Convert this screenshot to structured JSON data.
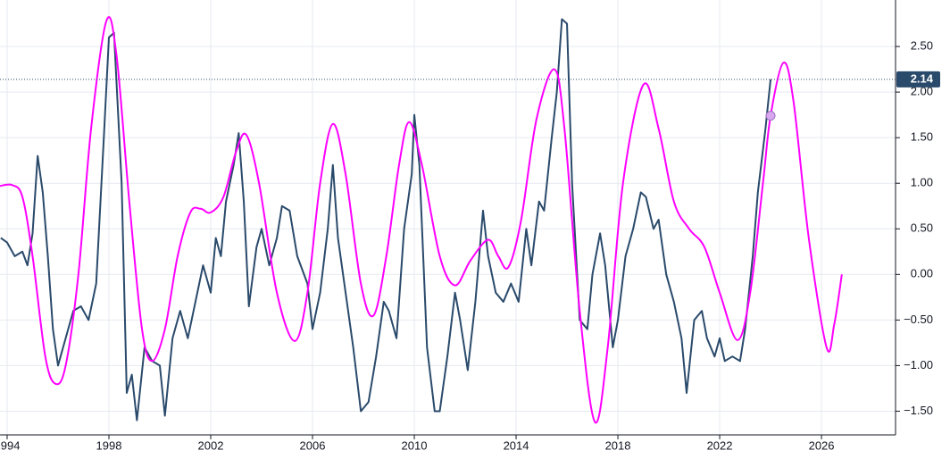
{
  "chart_data": {
    "type": "line",
    "xlim": [
      1993.72,
      2028.91
    ],
    "ylim": [
      -1.76,
      3.01
    ],
    "xticks": [
      1994,
      1998,
      2002,
      2006,
      2010,
      2014,
      2018,
      2022,
      2026
    ],
    "yticks": [
      {
        "value": 2.5,
        "label": "2.50"
      },
      {
        "value": 2.0,
        "label": "2.00"
      },
      {
        "value": 1.5,
        "label": "1.50"
      },
      {
        "value": 1.0,
        "label": "1.00"
      },
      {
        "value": 0.5,
        "label": "0.50"
      },
      {
        "value": 0.0,
        "label": "0.00"
      },
      {
        "value": -0.5,
        "label": "−0.50"
      },
      {
        "value": -1.0,
        "label": "−1.00"
      },
      {
        "value": -1.5,
        "label": "−1.50"
      }
    ],
    "grid": true,
    "series": [
      {
        "color": "#2a4a6b",
        "x": [
          1993.75,
          1994.0,
          1994.3,
          1994.6,
          1994.8,
          1995.0,
          1995.2,
          1995.4,
          1995.6,
          1995.8,
          1996.0,
          1996.3,
          1996.6,
          1996.9,
          1997.2,
          1997.5,
          1997.8,
          1998.0,
          1998.2,
          1998.5,
          1998.7,
          1998.9,
          1999.1,
          1999.4,
          1999.7,
          2000.0,
          2000.2,
          2000.5,
          2000.8,
          2001.1,
          2001.4,
          2001.7,
          2002.0,
          2002.2,
          2002.4,
          2002.6,
          2002.9,
          2003.1,
          2003.3,
          2003.5,
          2003.8,
          2004.0,
          2004.3,
          2004.6,
          2004.8,
          2005.1,
          2005.4,
          2005.8,
          2006.0,
          2006.3,
          2006.6,
          2006.8,
          2007.0,
          2007.3,
          2007.6,
          2007.9,
          2008.2,
          2008.5,
          2008.8,
          2009.0,
          2009.3,
          2009.6,
          2009.9,
          2010.0,
          2010.2,
          2010.5,
          2010.8,
          2011.0,
          2011.3,
          2011.6,
          2011.8,
          2012.1,
          2012.4,
          2012.7,
          2012.9,
          2013.2,
          2013.5,
          2013.8,
          2014.1,
          2014.4,
          2014.6,
          2014.9,
          2015.1,
          2015.4,
          2015.6,
          2015.8,
          2016.0,
          2016.2,
          2016.5,
          2016.8,
          2017.0,
          2017.3,
          2017.5,
          2017.8,
          2018.0,
          2018.3,
          2018.6,
          2018.9,
          2019.1,
          2019.4,
          2019.6,
          2019.9,
          2020.2,
          2020.5,
          2020.7,
          2021.0,
          2021.3,
          2021.5,
          2021.8,
          2022.0,
          2022.2,
          2022.5,
          2022.8,
          2023.0,
          2023.3,
          2023.5,
          2023.8,
          2024.0
        ],
        "values": [
          0.4,
          0.35,
          0.2,
          0.25,
          0.1,
          0.45,
          1.3,
          0.9,
          0.2,
          -0.6,
          -1.0,
          -0.7,
          -0.4,
          -0.35,
          -0.5,
          -0.1,
          1.5,
          2.6,
          2.65,
          1.0,
          -1.3,
          -1.1,
          -1.6,
          -0.8,
          -0.95,
          -1.0,
          -1.55,
          -0.7,
          -0.4,
          -0.7,
          -0.3,
          0.1,
          -0.2,
          0.4,
          0.2,
          0.8,
          1.2,
          1.55,
          0.8,
          -0.35,
          0.3,
          0.5,
          0.1,
          0.4,
          0.75,
          0.7,
          0.2,
          -0.1,
          -0.6,
          -0.2,
          0.5,
          1.2,
          0.4,
          -0.2,
          -0.8,
          -1.5,
          -1.4,
          -0.9,
          -0.3,
          -0.4,
          -0.7,
          0.5,
          1.1,
          1.75,
          1.2,
          -0.8,
          -1.5,
          -1.5,
          -0.9,
          -0.2,
          -0.5,
          -1.05,
          -0.3,
          0.7,
          0.2,
          -0.2,
          -0.3,
          -0.1,
          -0.3,
          0.5,
          0.1,
          0.8,
          0.7,
          1.5,
          2.0,
          2.8,
          2.75,
          1.0,
          -0.5,
          -0.6,
          0.0,
          0.45,
          0.1,
          -0.8,
          -0.5,
          0.2,
          0.5,
          0.9,
          0.85,
          0.5,
          0.6,
          0.0,
          -0.3,
          -0.7,
          -1.3,
          -0.5,
          -0.4,
          -0.7,
          -0.9,
          -0.7,
          -0.95,
          -0.9,
          -0.95,
          -0.6,
          0.2,
          0.9,
          1.6,
          2.14
        ]
      },
      {
        "color": "#ff00ff",
        "x": [
          1993.72,
          1994.2,
          1994.6,
          1995.0,
          1995.5,
          1995.9,
          1996.3,
          1996.8,
          1997.3,
          1997.9,
          1998.3,
          1998.8,
          1999.3,
          1999.7,
          2000.2,
          2000.7,
          2001.2,
          2001.6,
          2002.0,
          2002.5,
          2003.0,
          2003.4,
          2003.9,
          2004.6,
          2005.3,
          2005.8,
          2006.3,
          2006.8,
          2007.3,
          2007.9,
          2008.4,
          2008.9,
          2009.4,
          2009.8,
          2010.3,
          2011.0,
          2011.6,
          2012.2,
          2012.9,
          2013.3,
          2013.7,
          2014.2,
          2014.8,
          2015.5,
          2015.9,
          2016.5,
          2017.1,
          2017.6,
          2018.2,
          2019.0,
          2019.6,
          2020.2,
          2020.8,
          2021.4,
          2022.0,
          2022.7,
          2023.2,
          2023.7,
          2024.0,
          2024.5,
          2024.9,
          2025.5,
          2026.2,
          2026.5,
          2026.8
        ],
        "values": [
          0.97,
          0.98,
          0.85,
          0.2,
          -0.9,
          -1.2,
          -1.0,
          0.0,
          1.6,
          2.78,
          2.4,
          0.8,
          -0.6,
          -0.95,
          -0.6,
          0.2,
          0.68,
          0.72,
          0.68,
          0.85,
          1.35,
          1.53,
          1.0,
          -0.2,
          -0.73,
          -0.2,
          1.0,
          1.65,
          1.1,
          -0.1,
          -0.45,
          0.2,
          1.2,
          1.67,
          1.2,
          0.2,
          -0.12,
          0.15,
          0.38,
          0.2,
          0.08,
          0.6,
          1.7,
          2.25,
          1.6,
          -0.4,
          -1.62,
          -0.8,
          1.0,
          2.08,
          1.6,
          0.8,
          0.5,
          0.3,
          -0.2,
          -0.72,
          -0.2,
          1.0,
          1.74,
          2.32,
          1.9,
          0.4,
          -0.8,
          -0.55,
          0.0
        ]
      }
    ],
    "marker": {
      "x": 2024.0,
      "y": 1.74,
      "color": "#d7a8f0"
    }
  }
}
